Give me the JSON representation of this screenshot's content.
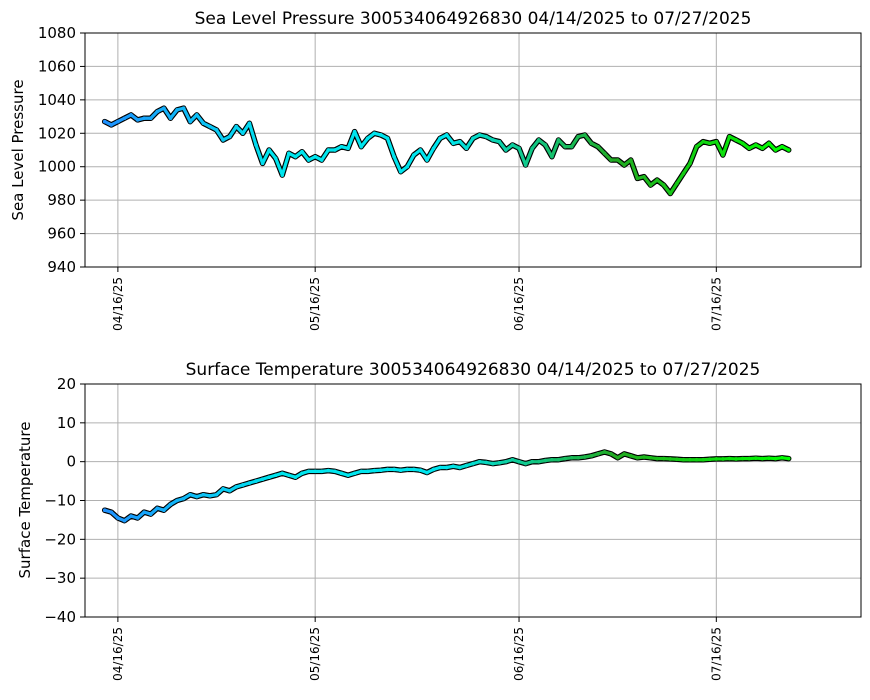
{
  "chart_data": [
    {
      "type": "scatter",
      "title": "Sea Level Pressure 300534064926830  04/14/2025 to 07/27/2025",
      "xlabel": "",
      "ylabel": "Sea Level Pressure",
      "ylim": [
        940,
        1080
      ],
      "yticks": [
        "940",
        "960",
        "980",
        "1000",
        "1020",
        "1040",
        "1060",
        "1080"
      ],
      "xlim": [
        "2025-04-11",
        "2025-08-07"
      ],
      "xticks": [
        {
          "date": "2025-04-16",
          "label": "04/16/25"
        },
        {
          "date": "2025-05-16",
          "label": "05/16/25"
        },
        {
          "date": "2025-06-16",
          "label": "06/16/25"
        },
        {
          "date": "2025-07-16",
          "label": "07/16/25"
        }
      ],
      "grid": true,
      "color_start": "#1e90ff",
      "color_mid": "#00e5ee",
      "color_mid2": "#22aa22",
      "color_end": "#00ff00",
      "points": [
        [
          "2025-04-14",
          1027
        ],
        [
          "2025-04-15",
          1025
        ],
        [
          "2025-04-16",
          1027
        ],
        [
          "2025-04-17",
          1029
        ],
        [
          "2025-04-18",
          1031
        ],
        [
          "2025-04-19",
          1028
        ],
        [
          "2025-04-20",
          1029
        ],
        [
          "2025-04-21",
          1029
        ],
        [
          "2025-04-22",
          1033
        ],
        [
          "2025-04-23",
          1035
        ],
        [
          "2025-04-24",
          1029
        ],
        [
          "2025-04-25",
          1034
        ],
        [
          "2025-04-26",
          1035
        ],
        [
          "2025-04-27",
          1027
        ],
        [
          "2025-04-28",
          1031
        ],
        [
          "2025-04-29",
          1026
        ],
        [
          "2025-04-30",
          1024
        ],
        [
          "2025-05-01",
          1022
        ],
        [
          "2025-05-02",
          1016
        ],
        [
          "2025-05-03",
          1018
        ],
        [
          "2025-05-04",
          1024
        ],
        [
          "2025-05-05",
          1020
        ],
        [
          "2025-05-06",
          1026
        ],
        [
          "2025-05-07",
          1013
        ],
        [
          "2025-05-08",
          1002
        ],
        [
          "2025-05-09",
          1010
        ],
        [
          "2025-05-10",
          1005
        ],
        [
          "2025-05-11",
          995
        ],
        [
          "2025-05-12",
          1008
        ],
        [
          "2025-05-13",
          1006
        ],
        [
          "2025-05-14",
          1009
        ],
        [
          "2025-05-15",
          1004
        ],
        [
          "2025-05-16",
          1006
        ],
        [
          "2025-05-17",
          1004
        ],
        [
          "2025-05-18",
          1010
        ],
        [
          "2025-05-19",
          1010
        ],
        [
          "2025-05-20",
          1012
        ],
        [
          "2025-05-21",
          1011
        ],
        [
          "2025-05-22",
          1021
        ],
        [
          "2025-05-23",
          1012
        ],
        [
          "2025-05-24",
          1017
        ],
        [
          "2025-05-25",
          1020
        ],
        [
          "2025-05-26",
          1019
        ],
        [
          "2025-05-27",
          1017
        ],
        [
          "2025-05-28",
          1006
        ],
        [
          "2025-05-29",
          997
        ],
        [
          "2025-05-30",
          1000
        ],
        [
          "2025-05-31",
          1007
        ],
        [
          "2025-06-01",
          1010
        ],
        [
          "2025-06-02",
          1004
        ],
        [
          "2025-06-03",
          1011
        ],
        [
          "2025-06-04",
          1017
        ],
        [
          "2025-06-05",
          1019
        ],
        [
          "2025-06-06",
          1014
        ],
        [
          "2025-06-07",
          1015
        ],
        [
          "2025-06-08",
          1011
        ],
        [
          "2025-06-09",
          1017
        ],
        [
          "2025-06-10",
          1019
        ],
        [
          "2025-06-11",
          1018
        ],
        [
          "2025-06-12",
          1016
        ],
        [
          "2025-06-13",
          1015
        ],
        [
          "2025-06-14",
          1010
        ],
        [
          "2025-06-15",
          1013
        ],
        [
          "2025-06-16",
          1011
        ],
        [
          "2025-06-17",
          1001
        ],
        [
          "2025-06-18",
          1011
        ],
        [
          "2025-06-19",
          1016
        ],
        [
          "2025-06-20",
          1013
        ],
        [
          "2025-06-21",
          1006
        ],
        [
          "2025-06-22",
          1016
        ],
        [
          "2025-06-23",
          1012
        ],
        [
          "2025-06-24",
          1012
        ],
        [
          "2025-06-25",
          1018
        ],
        [
          "2025-06-26",
          1019
        ],
        [
          "2025-06-27",
          1014
        ],
        [
          "2025-06-28",
          1012
        ],
        [
          "2025-06-29",
          1008
        ],
        [
          "2025-06-30",
          1004
        ],
        [
          "2025-07-01",
          1004
        ],
        [
          "2025-07-02",
          1001
        ],
        [
          "2025-07-03",
          1004
        ],
        [
          "2025-07-04",
          993
        ],
        [
          "2025-07-05",
          994
        ],
        [
          "2025-07-06",
          989
        ],
        [
          "2025-07-07",
          992
        ],
        [
          "2025-07-08",
          989
        ],
        [
          "2025-07-09",
          984
        ],
        [
          "2025-07-10",
          990
        ],
        [
          "2025-07-11",
          996
        ],
        [
          "2025-07-12",
          1002
        ],
        [
          "2025-07-13",
          1012
        ],
        [
          "2025-07-14",
          1015
        ],
        [
          "2025-07-15",
          1014
        ],
        [
          "2025-07-16",
          1015
        ],
        [
          "2025-07-17",
          1007
        ],
        [
          "2025-07-18",
          1018
        ],
        [
          "2025-07-19",
          1016
        ],
        [
          "2025-07-20",
          1014
        ],
        [
          "2025-07-21",
          1011
        ],
        [
          "2025-07-22",
          1013
        ],
        [
          "2025-07-23",
          1011
        ],
        [
          "2025-07-24",
          1014
        ],
        [
          "2025-07-25",
          1010
        ],
        [
          "2025-07-26",
          1012
        ],
        [
          "2025-07-27",
          1010
        ]
      ]
    },
    {
      "type": "scatter",
      "title": "Surface Temperature 300534064926830  04/14/2025 to 07/27/2025",
      "xlabel": "",
      "ylabel": "Surface Temperature",
      "ylim": [
        -40,
        20
      ],
      "yticks": [
        "−40",
        "−30",
        "−20",
        "−10",
        "0",
        "10",
        "20"
      ],
      "xlim": [
        "2025-04-11",
        "2025-08-07"
      ],
      "xticks": [
        {
          "date": "2025-04-16",
          "label": "04/16/25"
        },
        {
          "date": "2025-05-16",
          "label": "05/16/25"
        },
        {
          "date": "2025-06-16",
          "label": "06/16/25"
        },
        {
          "date": "2025-07-16",
          "label": "07/16/25"
        }
      ],
      "grid": true,
      "color_start": "#1e90ff",
      "color_mid": "#00e5ee",
      "color_mid2": "#22aa22",
      "color_end": "#00ff00",
      "points": [
        [
          "2025-04-14",
          -12.5
        ],
        [
          "2025-04-15",
          -13.0
        ],
        [
          "2025-04-16",
          -14.5
        ],
        [
          "2025-04-17",
          -15.2
        ],
        [
          "2025-04-18",
          -14.0
        ],
        [
          "2025-04-19",
          -14.5
        ],
        [
          "2025-04-20",
          -13.0
        ],
        [
          "2025-04-21",
          -13.5
        ],
        [
          "2025-04-22",
          -12.0
        ],
        [
          "2025-04-23",
          -12.5
        ],
        [
          "2025-04-24",
          -11.0
        ],
        [
          "2025-04-25",
          -10.0
        ],
        [
          "2025-04-26",
          -9.5
        ],
        [
          "2025-04-27",
          -8.5
        ],
        [
          "2025-04-28",
          -9.0
        ],
        [
          "2025-04-29",
          -8.5
        ],
        [
          "2025-04-30",
          -8.8
        ],
        [
          "2025-05-01",
          -8.5
        ],
        [
          "2025-05-02",
          -7.0
        ],
        [
          "2025-05-03",
          -7.5
        ],
        [
          "2025-05-04",
          -6.5
        ],
        [
          "2025-05-05",
          -6.0
        ],
        [
          "2025-05-06",
          -5.5
        ],
        [
          "2025-05-07",
          -5.0
        ],
        [
          "2025-05-08",
          -4.5
        ],
        [
          "2025-05-09",
          -4.0
        ],
        [
          "2025-05-10",
          -3.5
        ],
        [
          "2025-05-11",
          -3.0
        ],
        [
          "2025-05-12",
          -3.5
        ],
        [
          "2025-05-13",
          -4.0
        ],
        [
          "2025-05-14",
          -3.0
        ],
        [
          "2025-05-15",
          -2.5
        ],
        [
          "2025-05-16",
          -2.5
        ],
        [
          "2025-05-17",
          -2.5
        ],
        [
          "2025-05-18",
          -2.3
        ],
        [
          "2025-05-19",
          -2.5
        ],
        [
          "2025-05-20",
          -3.0
        ],
        [
          "2025-05-21",
          -3.5
        ],
        [
          "2025-05-22",
          -3.0
        ],
        [
          "2025-05-23",
          -2.5
        ],
        [
          "2025-05-24",
          -2.5
        ],
        [
          "2025-05-25",
          -2.3
        ],
        [
          "2025-05-26",
          -2.2
        ],
        [
          "2025-05-27",
          -2.0
        ],
        [
          "2025-05-28",
          -2.0
        ],
        [
          "2025-05-29",
          -2.2
        ],
        [
          "2025-05-30",
          -2.0
        ],
        [
          "2025-05-31",
          -2.0
        ],
        [
          "2025-06-01",
          -2.2
        ],
        [
          "2025-06-02",
          -2.8
        ],
        [
          "2025-06-03",
          -2.0
        ],
        [
          "2025-06-04",
          -1.5
        ],
        [
          "2025-06-05",
          -1.5
        ],
        [
          "2025-06-06",
          -1.2
        ],
        [
          "2025-06-07",
          -1.5
        ],
        [
          "2025-06-08",
          -1.0
        ],
        [
          "2025-06-09",
          -0.5
        ],
        [
          "2025-06-10",
          0.0
        ],
        [
          "2025-06-11",
          -0.2
        ],
        [
          "2025-06-12",
          -0.5
        ],
        [
          "2025-06-13",
          -0.3
        ],
        [
          "2025-06-14",
          0.0
        ],
        [
          "2025-06-15",
          0.5
        ],
        [
          "2025-06-16",
          0.0
        ],
        [
          "2025-06-17",
          -0.5
        ],
        [
          "2025-06-18",
          0.0
        ],
        [
          "2025-06-19",
          0.0
        ],
        [
          "2025-06-20",
          0.3
        ],
        [
          "2025-06-21",
          0.5
        ],
        [
          "2025-06-22",
          0.5
        ],
        [
          "2025-06-23",
          0.8
        ],
        [
          "2025-06-24",
          1.0
        ],
        [
          "2025-06-25",
          1.0
        ],
        [
          "2025-06-26",
          1.2
        ],
        [
          "2025-06-27",
          1.5
        ],
        [
          "2025-06-28",
          2.0
        ],
        [
          "2025-06-29",
          2.5
        ],
        [
          "2025-06-30",
          2.0
        ],
        [
          "2025-07-01",
          1.0
        ],
        [
          "2025-07-02",
          2.0
        ],
        [
          "2025-07-03",
          1.5
        ],
        [
          "2025-07-04",
          1.0
        ],
        [
          "2025-07-05",
          1.2
        ],
        [
          "2025-07-06",
          1.0
        ],
        [
          "2025-07-07",
          0.8
        ],
        [
          "2025-07-08",
          0.8
        ],
        [
          "2025-07-09",
          0.7
        ],
        [
          "2025-07-10",
          0.6
        ],
        [
          "2025-07-11",
          0.5
        ],
        [
          "2025-07-12",
          0.5
        ],
        [
          "2025-07-13",
          0.5
        ],
        [
          "2025-07-14",
          0.5
        ],
        [
          "2025-07-15",
          0.6
        ],
        [
          "2025-07-16",
          0.7
        ],
        [
          "2025-07-17",
          0.7
        ],
        [
          "2025-07-18",
          0.8
        ],
        [
          "2025-07-19",
          0.7
        ],
        [
          "2025-07-20",
          0.8
        ],
        [
          "2025-07-21",
          0.8
        ],
        [
          "2025-07-22",
          0.9
        ],
        [
          "2025-07-23",
          0.8
        ],
        [
          "2025-07-24",
          0.9
        ],
        [
          "2025-07-25",
          0.8
        ],
        [
          "2025-07-26",
          1.0
        ],
        [
          "2025-07-27",
          0.8
        ]
      ]
    }
  ]
}
